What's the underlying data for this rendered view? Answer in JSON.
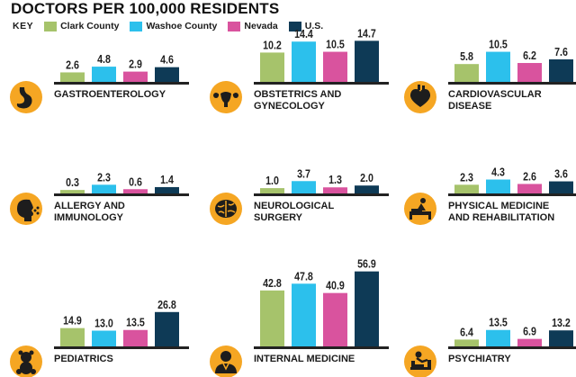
{
  "title": "DOCTORS PER 100,000 RESIDENTS",
  "key": {
    "label": "KEY",
    "items": [
      {
        "name": "Clark County",
        "color": "#a6c36b"
      },
      {
        "name": "Washoe County",
        "color": "#2cc0ec"
      },
      {
        "name": "Nevada",
        "color": "#d9539e"
      },
      {
        "name": "U.S.",
        "color": "#0e3a56"
      }
    ]
  },
  "chart_data": [
    {
      "type": "bar",
      "title_lines": [
        "GASTROENTEROLOGY"
      ],
      "icon": "stomach-icon",
      "values": [
        2.6,
        4.8,
        2.9,
        4.6
      ],
      "labels": [
        "2.6",
        "4.8",
        "2.9",
        "4.6"
      ]
    },
    {
      "type": "bar",
      "title_lines": [
        "OBSTETRICS AND",
        "GYNECOLOGY"
      ],
      "icon": "uterus-icon",
      "values": [
        10.2,
        14.4,
        10.5,
        14.7
      ],
      "labels": [
        "10.2",
        "14.4",
        "10.5",
        "14.7"
      ]
    },
    {
      "type": "bar",
      "title_lines": [
        "CARDIOVASCULAR",
        "DISEASE"
      ],
      "icon": "heart-icon",
      "values": [
        5.8,
        10.5,
        6.2,
        7.6
      ],
      "labels": [
        "5.8",
        "10.5",
        "6.2",
        "7.6"
      ]
    },
    {
      "type": "bar",
      "title_lines": [
        "ALLERGY AND",
        "IMMUNOLOGY"
      ],
      "icon": "sneeze-icon",
      "values": [
        0.3,
        2.3,
        0.6,
        1.4
      ],
      "labels": [
        "0.3",
        "2.3",
        "0.6",
        "1.4"
      ]
    },
    {
      "type": "bar",
      "title_lines": [
        "NEUROLOGICAL",
        "SURGERY"
      ],
      "icon": "brain-icon",
      "values": [
        1.0,
        3.7,
        1.3,
        2.0
      ],
      "labels": [
        "1.0",
        "3.7",
        "1.3",
        "2.0"
      ]
    },
    {
      "type": "bar",
      "title_lines": [
        "PHYSICAL MEDICINE",
        "AND REHABILITATION"
      ],
      "icon": "therapy-icon",
      "values": [
        2.3,
        4.3,
        2.6,
        3.6
      ],
      "labels": [
        "2.3",
        "4.3",
        "2.6",
        "3.6"
      ]
    },
    {
      "type": "bar",
      "title_lines": [
        "PEDIATRICS"
      ],
      "icon": "teddy-bear-icon",
      "values": [
        14.9,
        13.0,
        13.5,
        26.8
      ],
      "labels": [
        "14.9",
        "13.0",
        "13.5",
        "26.8"
      ]
    },
    {
      "type": "bar",
      "title_lines": [
        "INTERNAL MEDICINE"
      ],
      "icon": "doctor-icon",
      "values": [
        42.8,
        47.8,
        40.9,
        56.9
      ],
      "labels": [
        "42.8",
        "47.8",
        "40.9",
        "56.9"
      ]
    },
    {
      "type": "bar",
      "title_lines": [
        "PSYCHIATRY"
      ],
      "icon": "couch-icon",
      "values": [
        6.4,
        13.5,
        6.9,
        13.2
      ],
      "labels": [
        "6.4",
        "13.5",
        "6.9",
        "13.2"
      ]
    }
  ]
}
